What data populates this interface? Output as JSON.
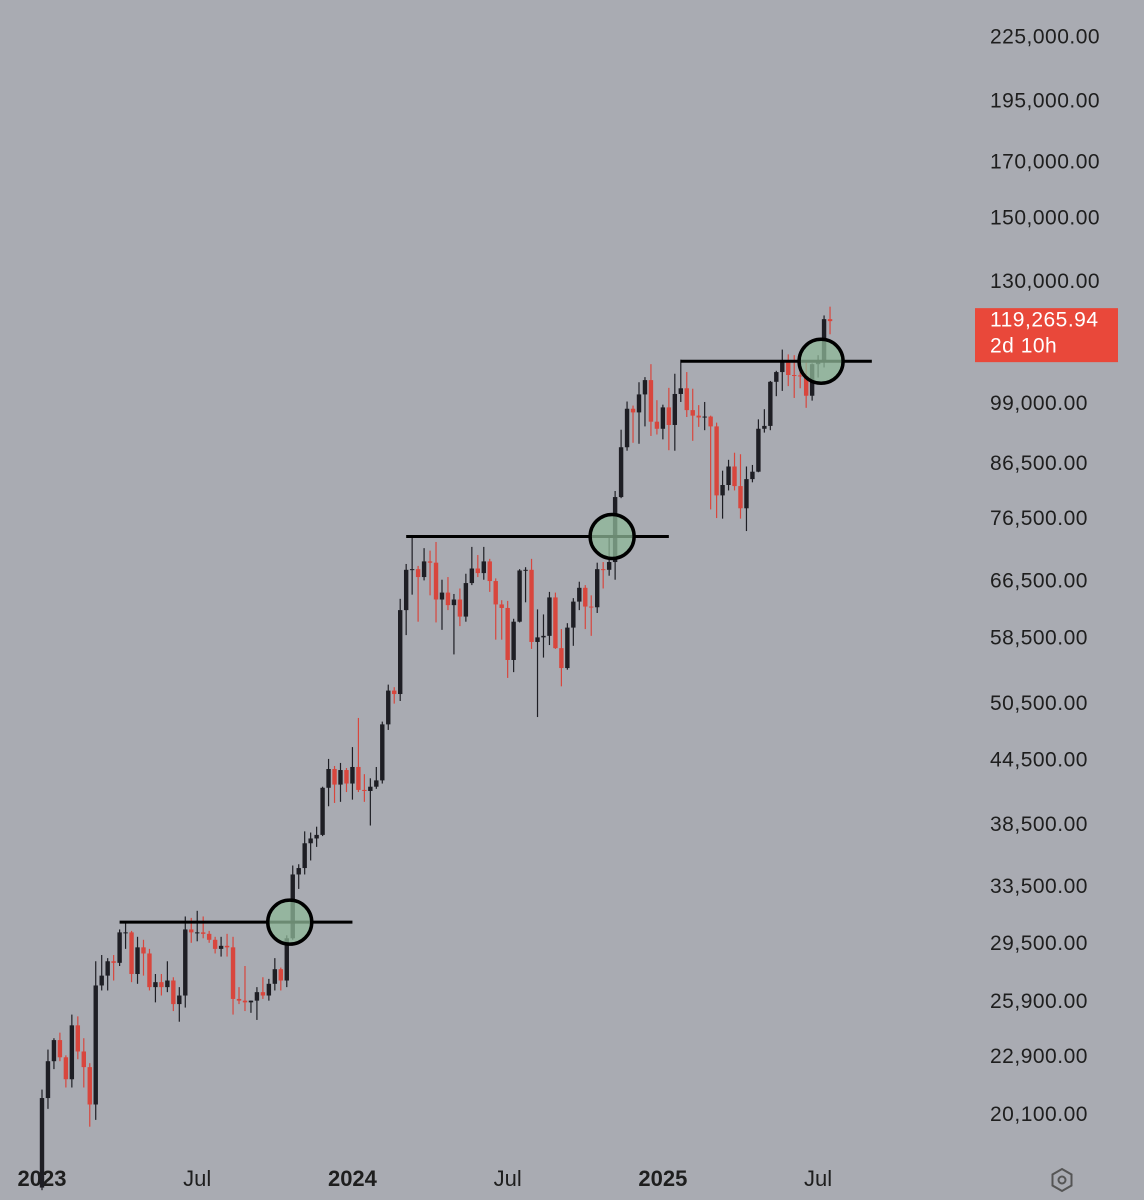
{
  "chart_data": {
    "type": "candlestick",
    "log": true,
    "ylim": [
      18190,
      245000
    ],
    "background": "#a9abb2",
    "up_color": "#1e1e24",
    "down_color": "#d8463d",
    "text_color": "#1e1e1e",
    "yticks": [
      {
        "value": 225000,
        "label": "225,000.00"
      },
      {
        "value": 195000,
        "label": "195,000.00"
      },
      {
        "value": 170000,
        "label": "170,000.00"
      },
      {
        "value": 150000,
        "label": "150,000.00"
      },
      {
        "value": 130000,
        "label": "130,000.00"
      },
      {
        "value": 99000,
        "label": "99,000.00"
      },
      {
        "value": 86500,
        "label": "86,500.00"
      },
      {
        "value": 76500,
        "label": "76,500.00"
      },
      {
        "value": 66500,
        "label": "66,500.00"
      },
      {
        "value": 58500,
        "label": "58,500.00"
      },
      {
        "value": 50500,
        "label": "50,500.00"
      },
      {
        "value": 44500,
        "label": "44,500.00"
      },
      {
        "value": 38500,
        "label": "38,500.00"
      },
      {
        "value": 33500,
        "label": "33,500.00"
      },
      {
        "value": 29500,
        "label": "29,500.00"
      },
      {
        "value": 25900,
        "label": "25,900.00"
      },
      {
        "value": 22900,
        "label": "22,900.00"
      },
      {
        "value": 20100,
        "label": "20,100.00"
      }
    ],
    "last_price": {
      "value": 119265.94,
      "label": "119,265.94",
      "countdown": "2d 10h",
      "color": "#e9483a"
    },
    "categories": [
      "2023",
      null,
      null,
      null,
      null,
      null,
      null,
      null,
      null,
      null,
      null,
      null,
      null,
      null,
      null,
      null,
      null,
      null,
      null,
      null,
      null,
      null,
      null,
      null,
      null,
      null,
      "Jul",
      null,
      null,
      null,
      null,
      null,
      null,
      null,
      null,
      null,
      null,
      null,
      null,
      null,
      null,
      null,
      null,
      null,
      null,
      null,
      null,
      null,
      null,
      null,
      null,
      null,
      "2024",
      null,
      null,
      null,
      null,
      null,
      null,
      null,
      null,
      null,
      null,
      null,
      null,
      null,
      null,
      null,
      null,
      null,
      null,
      null,
      null,
      null,
      null,
      null,
      null,
      null,
      "Jul",
      null,
      null,
      null,
      null,
      null,
      null,
      null,
      null,
      null,
      null,
      null,
      null,
      null,
      null,
      null,
      null,
      null,
      null,
      null,
      null,
      null,
      null,
      null,
      null,
      null,
      "2025",
      null,
      null,
      null,
      null,
      null,
      null,
      null,
      null,
      null,
      null,
      null,
      null,
      null,
      null,
      null,
      null,
      null,
      null,
      null,
      null,
      null,
      null,
      null,
      null,
      null,
      "Jul",
      null,
      null
    ],
    "open": [
      17100,
      20900,
      22700,
      23800,
      22900,
      21800,
      24600,
      23200,
      22400,
      20600,
      26900,
      27500,
      28400,
      28300,
      30300,
      30300,
      27600,
      29300,
      28900,
      26800,
      27100,
      26800,
      27200,
      25800,
      26300,
      30500,
      30300,
      30300,
      30200,
      29800,
      29200,
      29400,
      29300,
      26100,
      26000,
      25900,
      26000,
      26500,
      26300,
      27000,
      27900,
      27200,
      29900,
      34500,
      35000,
      37000,
      37400,
      37700,
      41900,
      43700,
      42200,
      43600,
      42300,
      43900,
      41700,
      41600,
      42000,
      42600,
      48300,
      52100,
      51700,
      62400,
      68300,
      68400,
      67200,
      69600,
      69400,
      63900,
      64900,
      63100,
      63900,
      61500,
      66300,
      68500,
      67800,
      69600,
      66600,
      63200,
      62700,
      55800,
      60800,
      68200,
      68300,
      58100,
      58700,
      58900,
      64200,
      57300,
      54800,
      60000,
      63600,
      65600,
      62900,
      62800,
      68400,
      68300,
      69500,
      80400,
      89900,
      98000,
      97200,
      101200,
      104500,
      95200,
      93700,
      98300,
      94500,
      101300,
      102600,
      97700,
      96500,
      96100,
      96300,
      94200,
      80700,
      82600,
      86100,
      82400,
      78400,
      83700,
      85100,
      93700,
      94300,
      104100,
      106400,
      109000,
      105700,
      105600,
      105500,
      100900,
      108300,
      109200,
      119800
    ],
    "high": [
      21300,
      23300,
      23900,
      24200,
      23000,
      25200,
      25100,
      23900,
      22600,
      28400,
      28800,
      28600,
      28800,
      30500,
      31000,
      30400,
      30000,
      29800,
      29200,
      27600,
      27600,
      28400,
      27400,
      26800,
      31400,
      31300,
      31800,
      31400,
      30400,
      30000,
      30000,
      30200,
      30000,
      26800,
      28100,
      26000,
      26800,
      27400,
      27300,
      28600,
      28000,
      30100,
      35200,
      35300,
      38000,
      37900,
      38400,
      42000,
      44700,
      44000,
      44300,
      43800,
      45900,
      49000,
      43200,
      42800,
      43900,
      48600,
      52800,
      52500,
      64000,
      69200,
      73700,
      68900,
      71700,
      71300,
      72700,
      66800,
      67200,
      64700,
      65500,
      67700,
      71900,
      70600,
      71900,
      70000,
      67000,
      63800,
      63700,
      61200,
      68400,
      68700,
      70000,
      62500,
      61800,
      65000,
      64900,
      59800,
      60600,
      64100,
      66500,
      66000,
      64500,
      69400,
      69500,
      73600,
      81500,
      93500,
      99600,
      98700,
      104000,
      105200,
      108300,
      99900,
      98900,
      102700,
      106000,
      109400,
      106400,
      102500,
      98800,
      99500,
      96500,
      95000,
      85300,
      87400,
      88800,
      88500,
      86100,
      86400,
      95700,
      97900,
      104300,
      106700,
      111900,
      110700,
      110500,
      110600,
      108900,
      108500,
      110500,
      120800,
      123200
    ],
    "low": [
      17000,
      20400,
      22300,
      22700,
      21400,
      21400,
      22800,
      21400,
      19600,
      19900,
      26600,
      26600,
      27200,
      28100,
      29200,
      27100,
      27000,
      27500,
      26600,
      25900,
      26300,
      26500,
      25400,
      24800,
      25600,
      29600,
      29700,
      29900,
      29600,
      28900,
      28700,
      28700,
      25200,
      25800,
      25400,
      25300,
      24900,
      26100,
      26000,
      26600,
      26600,
      26800,
      29800,
      33400,
      34500,
      35600,
      36700,
      37600,
      40200,
      40500,
      40600,
      41500,
      40800,
      41500,
      40600,
      38500,
      41800,
      42300,
      47700,
      50600,
      50900,
      59000,
      64600,
      60800,
      66700,
      64500,
      60700,
      59700,
      62400,
      56500,
      60200,
      60800,
      66000,
      67200,
      66800,
      65000,
      58400,
      58400,
      53600,
      54300,
      60700,
      63500,
      57200,
      49100,
      56100,
      57700,
      57200,
      52600,
      54600,
      57600,
      62400,
      59800,
      58900,
      62000,
      65500,
      67400,
      66800,
      80200,
      89200,
      90800,
      90600,
      94200,
      92200,
      92500,
      91500,
      89300,
      89200,
      99500,
      96200,
      91200,
      94100,
      93400,
      78200,
      76700,
      76600,
      81600,
      81600,
      76600,
      74500,
      83100,
      85000,
      92900,
      93400,
      100800,
      102000,
      103100,
      100400,
      102600,
      98200,
      99800,
      105100,
      107500,
      115800
    ],
    "close": [
      20900,
      22700,
      23800,
      22900,
      21800,
      24600,
      23200,
      22400,
      20600,
      26900,
      27500,
      28400,
      28300,
      30300,
      30300,
      27600,
      29300,
      28900,
      26800,
      27100,
      26800,
      27200,
      25800,
      26300,
      30500,
      30300,
      30300,
      30200,
      29800,
      29200,
      29400,
      29300,
      26100,
      26000,
      25900,
      26000,
      26500,
      26300,
      27000,
      27900,
      27200,
      29900,
      34500,
      35000,
      37000,
      37400,
      37700,
      41900,
      43700,
      42200,
      43600,
      42300,
      43900,
      41700,
      41600,
      42000,
      42600,
      48300,
      52100,
      51700,
      62400,
      68300,
      68400,
      67200,
      69600,
      69400,
      63900,
      64900,
      63100,
      63900,
      61500,
      66300,
      68500,
      67800,
      69600,
      66600,
      63200,
      62700,
      55800,
      60800,
      68200,
      68300,
      58100,
      58700,
      58900,
      64200,
      57300,
      54800,
      60000,
      63600,
      65600,
      62900,
      62800,
      68400,
      68300,
      69500,
      80400,
      89900,
      98000,
      97200,
      101200,
      104500,
      95200,
      93700,
      98300,
      94500,
      101300,
      102600,
      97700,
      96500,
      96100,
      96300,
      94200,
      80700,
      82600,
      86100,
      82400,
      78400,
      83700,
      85100,
      93700,
      94300,
      104100,
      106400,
      109000,
      105700,
      105600,
      105500,
      100900,
      108300,
      109200,
      119800,
      119265.94
    ],
    "levels": [
      {
        "price": 31000,
        "from": 13,
        "to": 52
      },
      {
        "price": 73600,
        "from": 61,
        "to": 105
      },
      {
        "price": 109000,
        "from": 107,
        "to": 139
      }
    ],
    "markers": [
      {
        "index": 41.5,
        "price": 31000,
        "color": "#8fb898"
      },
      {
        "index": 95.5,
        "price": 73600,
        "color": "#8fb898"
      },
      {
        "index": 130.5,
        "price": 109000,
        "color": "#8fb898"
      }
    ]
  }
}
